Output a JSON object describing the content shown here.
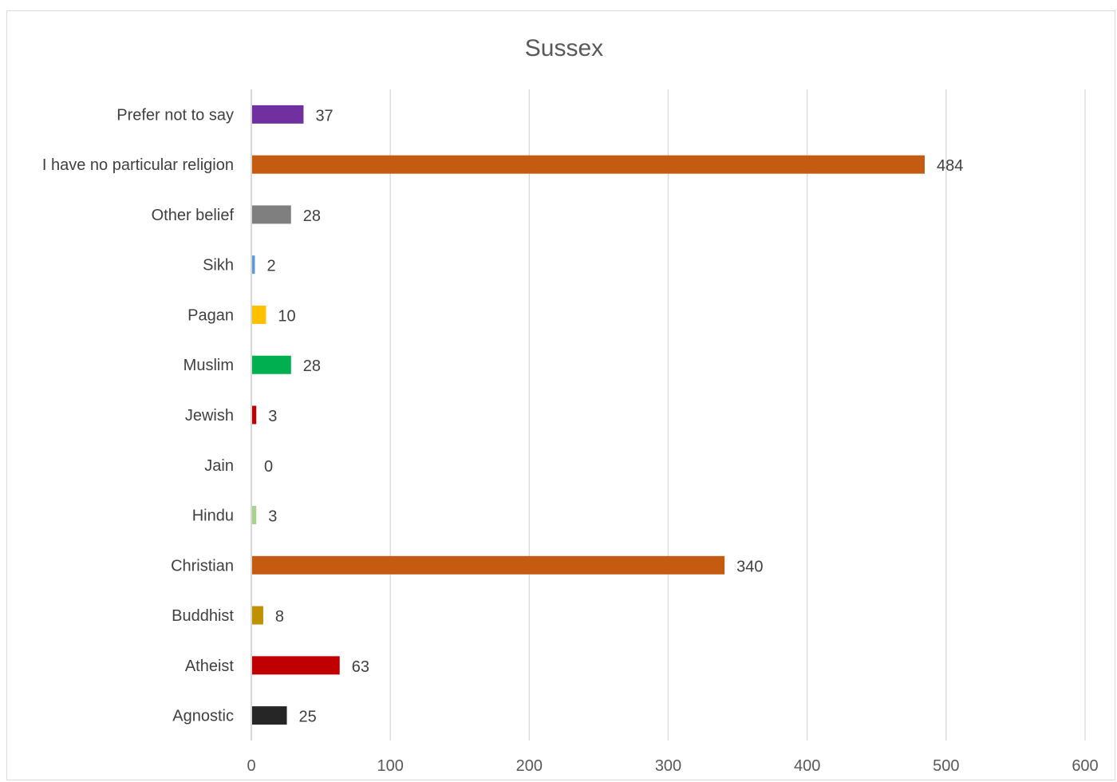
{
  "chart_data": {
    "type": "bar",
    "orientation": "horizontal",
    "title": "Sussex",
    "xlabel": "",
    "ylabel": "",
    "xlim": [
      0,
      600
    ],
    "x_ticks": [
      0,
      100,
      200,
      300,
      400,
      500,
      600
    ],
    "grid": true,
    "legend": "none",
    "categories": [
      "Prefer not to say",
      "I have no particular religion",
      "Other belief",
      "Sikh",
      "Pagan",
      "Muslim",
      "Jewish",
      "Jain",
      "Hindu",
      "Christian",
      "Buddhist",
      "Atheist",
      "Agnostic"
    ],
    "values": [
      37,
      484,
      28,
      2,
      10,
      28,
      3,
      0,
      3,
      340,
      8,
      63,
      25
    ],
    "colors": [
      "#7030a0",
      "#c55a11",
      "#7f7f7f",
      "#5b9bd5",
      "#ffc000",
      "#00b050",
      "#c00000",
      "#ffffff",
      "#a9d18e",
      "#c55a11",
      "#bf9000",
      "#c00000",
      "#262626"
    ]
  }
}
